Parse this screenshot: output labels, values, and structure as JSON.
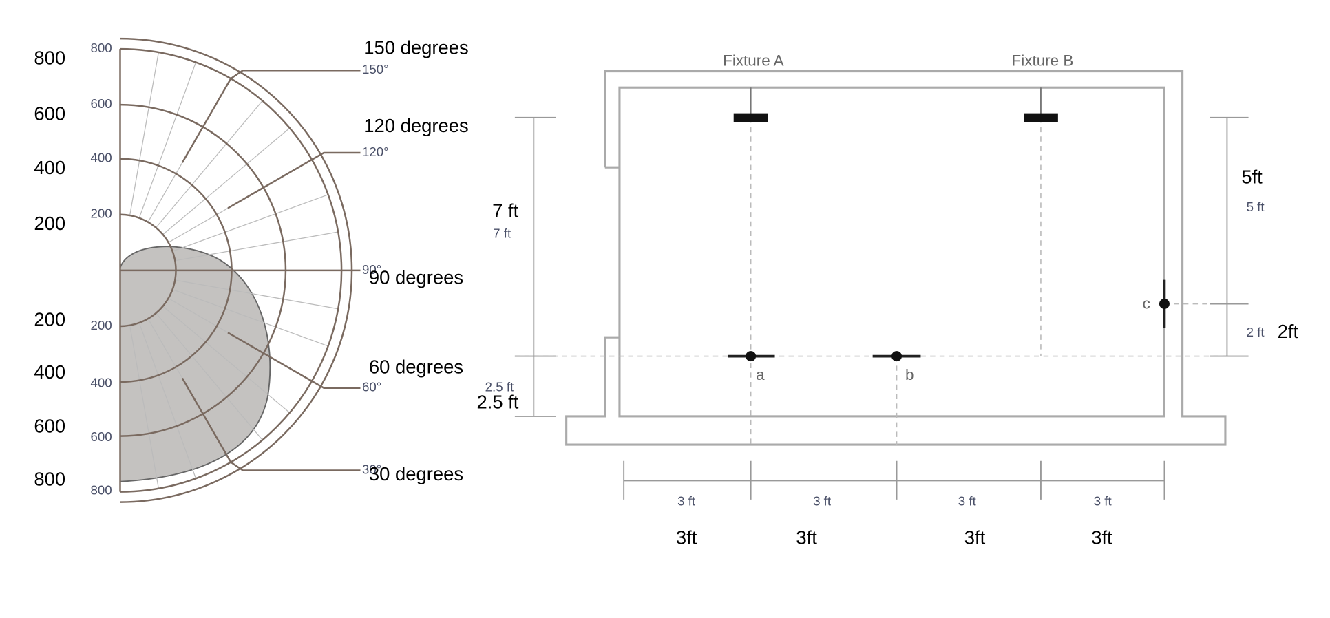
{
  "polar_plot": {
    "overlay_top": [
      800,
      600,
      400,
      200
    ],
    "printed_top": [
      800,
      600,
      400,
      200
    ],
    "overlay_bottom": [
      200,
      400,
      600,
      800
    ],
    "printed_bottom": [
      200,
      400,
      600,
      800
    ],
    "angles": [
      {
        "overlay": "150 degrees",
        "printed": "150°"
      },
      {
        "overlay": "120 degrees",
        "printed": "120°"
      },
      {
        "overlay": "90 degrees",
        "printed": "90°"
      },
      {
        "overlay": "60 degrees",
        "printed": "60°"
      },
      {
        "overlay": "30 degrees",
        "printed": "30°"
      }
    ]
  },
  "room": {
    "fixtures": [
      "Fixture A",
      "Fixture B"
    ],
    "points": [
      "a",
      "b",
      "c"
    ],
    "height_overlay": "7 ft",
    "height_printed": "7 ft",
    "low_overlay": "2.5 ft",
    "low_printed": "2.5 ft",
    "right_top_overlay": "5ft",
    "right_top_printed": "5 ft",
    "right_bottom_printed": "2 ft",
    "right_bottom_overlay": "2ft",
    "spans_printed": [
      "3 ft",
      "3 ft",
      "3 ft",
      "3 ft"
    ],
    "spans_overlay": [
      "3ft",
      "3ft",
      "3ft",
      "3ft"
    ]
  }
}
